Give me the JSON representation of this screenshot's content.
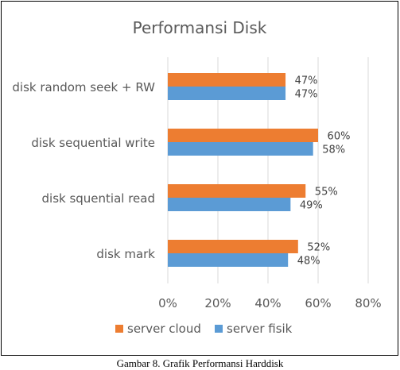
{
  "caption": "Gambar 8. Grafik Performansi Harddisk",
  "colors": {
    "server_cloud": "#ED7D31",
    "server_fisik": "#5B9BD5",
    "gridline": "#D9D9D9",
    "text": "#595959",
    "label_text": "#404040"
  },
  "chart_data": {
    "type": "bar",
    "orientation": "horizontal",
    "title": "Performansi Disk",
    "categories": [
      "disk random seek + RW",
      "disk sequential write",
      "disk squential read",
      "disk mark"
    ],
    "series": [
      {
        "name": "server cloud",
        "values": [
          47,
          60,
          55,
          52
        ],
        "labels": [
          "47%",
          "60%",
          "55%",
          "52%"
        ]
      },
      {
        "name": "server fisik",
        "values": [
          47,
          58,
          49,
          48
        ],
        "labels": [
          "47%",
          "58%",
          "49%",
          "48%"
        ]
      }
    ],
    "xlim": [
      0,
      80
    ],
    "xticks": [
      0,
      20,
      40,
      60,
      80
    ],
    "xtick_labels": [
      "0%",
      "20%",
      "40%",
      "60%",
      "80%"
    ],
    "grid": true,
    "legend_position": "bottom"
  }
}
